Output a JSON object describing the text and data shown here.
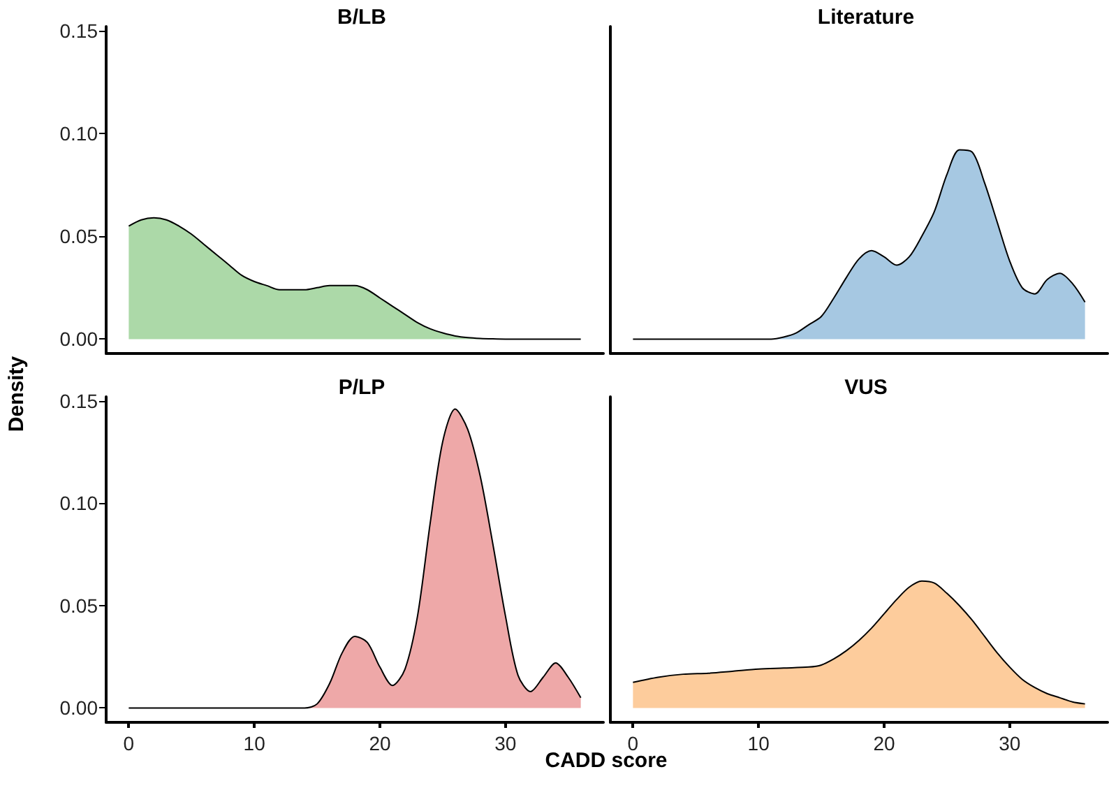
{
  "chart_data": [
    {
      "type": "area",
      "title": "B/LB",
      "ylabel": "Density",
      "color": "#acd9a8",
      "tick_labels": "y",
      "xlim": [
        -1.8,
        37.8
      ],
      "ylim": [
        -0.007,
        0.152
      ],
      "yticks": [
        {
          "value": 0,
          "label": "0.00"
        },
        {
          "value": 0.05,
          "label": "0.05"
        },
        {
          "value": 0.1,
          "label": "0.10"
        },
        {
          "value": 0.15,
          "label": "0.15"
        }
      ],
      "x": [
        0,
        1,
        2,
        3,
        4,
        5,
        6,
        7,
        8,
        9,
        10,
        11,
        12,
        13,
        14,
        15,
        16,
        17,
        18,
        19,
        20,
        21,
        22,
        23,
        24,
        25,
        26,
        27,
        28,
        29,
        30,
        32,
        34,
        36
      ],
      "values": [
        0.055,
        0.058,
        0.059,
        0.058,
        0.055,
        0.051,
        0.046,
        0.041,
        0.036,
        0.031,
        0.028,
        0.026,
        0.024,
        0.024,
        0.024,
        0.025,
        0.026,
        0.026,
        0.026,
        0.024,
        0.02,
        0.016,
        0.012,
        0.008,
        0.005,
        0.003,
        0.0015,
        0.0007,
        0.0003,
        0.0001,
        0,
        0,
        0,
        0
      ]
    },
    {
      "type": "area",
      "title": "Literature",
      "color": "#a6c8e2",
      "tick_labels": false,
      "xlim": [
        -1.8,
        37.8
      ],
      "ylim": [
        -0.007,
        0.152
      ],
      "x": [
        0,
        2,
        4,
        6,
        8,
        10,
        11,
        12,
        13,
        14,
        15,
        16,
        17,
        18,
        19,
        20,
        21,
        22,
        23,
        24,
        25,
        26,
        27,
        28,
        29,
        30,
        31,
        32,
        33,
        34,
        35,
        36
      ],
      "values": [
        0,
        0,
        0,
        0,
        0,
        0,
        0,
        0.001,
        0.003,
        0.007,
        0.011,
        0.02,
        0.03,
        0.039,
        0.043,
        0.04,
        0.036,
        0.04,
        0.05,
        0.062,
        0.08,
        0.092,
        0.091,
        0.076,
        0.057,
        0.038,
        0.025,
        0.022,
        0.029,
        0.032,
        0.027,
        0.018
      ]
    },
    {
      "type": "area",
      "title": "P/LP",
      "color": "#eea8a8",
      "xlim": [
        -1.8,
        37.8
      ],
      "ylim": [
        -0.007,
        0.152
      ],
      "xticks": [
        0,
        10,
        20,
        30
      ],
      "yticks": [
        {
          "value": 0,
          "label": "0.00"
        },
        {
          "value": 0.05,
          "label": "0.05"
        },
        {
          "value": 0.1,
          "label": "0.10"
        },
        {
          "value": 0.15,
          "label": "0.15"
        }
      ],
      "x": [
        0,
        2,
        4,
        6,
        8,
        10,
        12,
        14,
        15,
        16,
        17,
        18,
        19,
        20,
        21,
        22,
        23,
        24,
        25,
        26,
        27,
        28,
        29,
        30,
        31,
        32,
        33,
        34,
        35,
        36
      ],
      "values": [
        0,
        0,
        0,
        0,
        0,
        0,
        0,
        0,
        0.002,
        0.012,
        0.027,
        0.035,
        0.032,
        0.02,
        0.011,
        0.019,
        0.045,
        0.09,
        0.13,
        0.146,
        0.136,
        0.113,
        0.08,
        0.045,
        0.016,
        0.008,
        0.015,
        0.022,
        0.015,
        0.005
      ]
    },
    {
      "type": "area",
      "title": "VUS",
      "xlabel": "CADD score",
      "color": "#fdcc9c",
      "tick_labels": "x",
      "xlim": [
        -1.8,
        37.8
      ],
      "ylim": [
        -0.007,
        0.152
      ],
      "xticks": [
        0,
        10,
        20,
        30
      ],
      "x": [
        0,
        2,
        4,
        6,
        8,
        10,
        12,
        14,
        15,
        16,
        17,
        18,
        19,
        20,
        21,
        22,
        23,
        24,
        25,
        26,
        27,
        28,
        29,
        30,
        31,
        32,
        33,
        34,
        35,
        36
      ],
      "values": [
        0.0125,
        0.015,
        0.0165,
        0.017,
        0.018,
        0.019,
        0.0195,
        0.02,
        0.021,
        0.024,
        0.028,
        0.033,
        0.039,
        0.046,
        0.053,
        0.059,
        0.062,
        0.061,
        0.056,
        0.05,
        0.043,
        0.035,
        0.027,
        0.02,
        0.014,
        0.01,
        0.007,
        0.005,
        0.003,
        0.002
      ]
    }
  ]
}
